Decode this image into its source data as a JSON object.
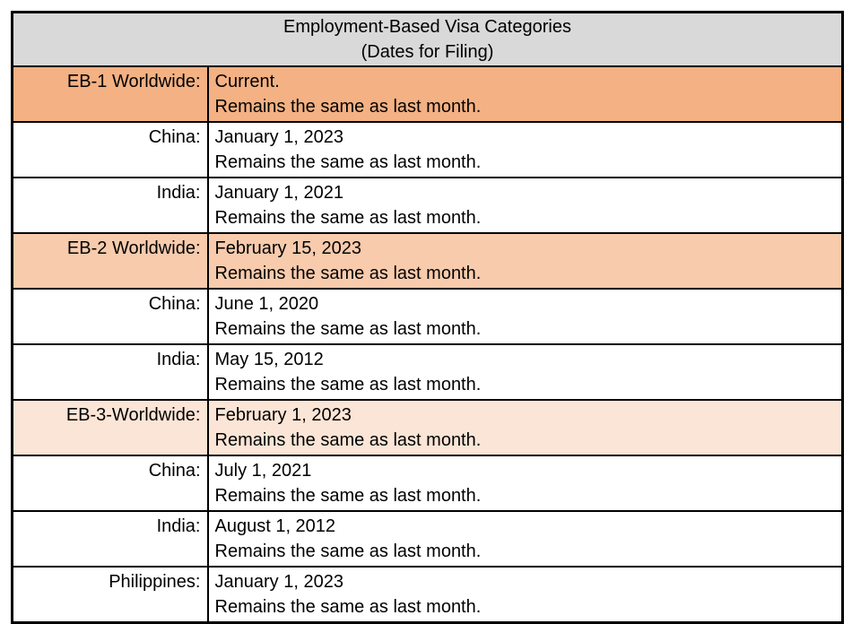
{
  "table": {
    "title_line1": "Employment-Based Visa Categories",
    "title_line2": "(Dates for Filing)",
    "rows": [
      {
        "label": "EB-1 Worldwide:",
        "date": "Current.",
        "note": "Remains the same as last month.",
        "highlight": "eb1"
      },
      {
        "label": "China:",
        "date": "January 1, 2023",
        "note": "Remains the same as last month.",
        "highlight": "none"
      },
      {
        "label": "India:",
        "date": "January 1, 2021",
        "note": "Remains the same as last month.",
        "highlight": "none"
      },
      {
        "label": "EB-2 Worldwide:",
        "date": "February 15, 2023",
        "note": "Remains the same as last month.",
        "highlight": "eb2"
      },
      {
        "label": "China:",
        "date": "June 1, 2020",
        "note": "Remains the same as last month.",
        "highlight": "none"
      },
      {
        "label": "India:",
        "date": "May 15, 2012",
        "note": "Remains the same as last month.",
        "highlight": "none"
      },
      {
        "label": "EB-3-Worldwide:",
        "date": "February 1, 2023",
        "note": "Remains the same as last month.",
        "highlight": "eb3"
      },
      {
        "label": "China:",
        "date": "July 1, 2021",
        "note": "Remains the same as last month.",
        "highlight": "none"
      },
      {
        "label": "India:",
        "date": "August 1, 2012",
        "note": "Remains the same as last month.",
        "highlight": "none"
      },
      {
        "label": "Philippines:",
        "date": "January 1, 2023",
        "note": "Remains the same as last month.",
        "highlight": "none"
      }
    ],
    "colors": {
      "header_bg": "#D9D9D9",
      "eb1_row_bg": "#F4B183",
      "eb2_row_bg": "#F8CBAD",
      "eb3_row_bg": "#FBE5D6",
      "border": "#000000",
      "text": "#000000"
    }
  }
}
